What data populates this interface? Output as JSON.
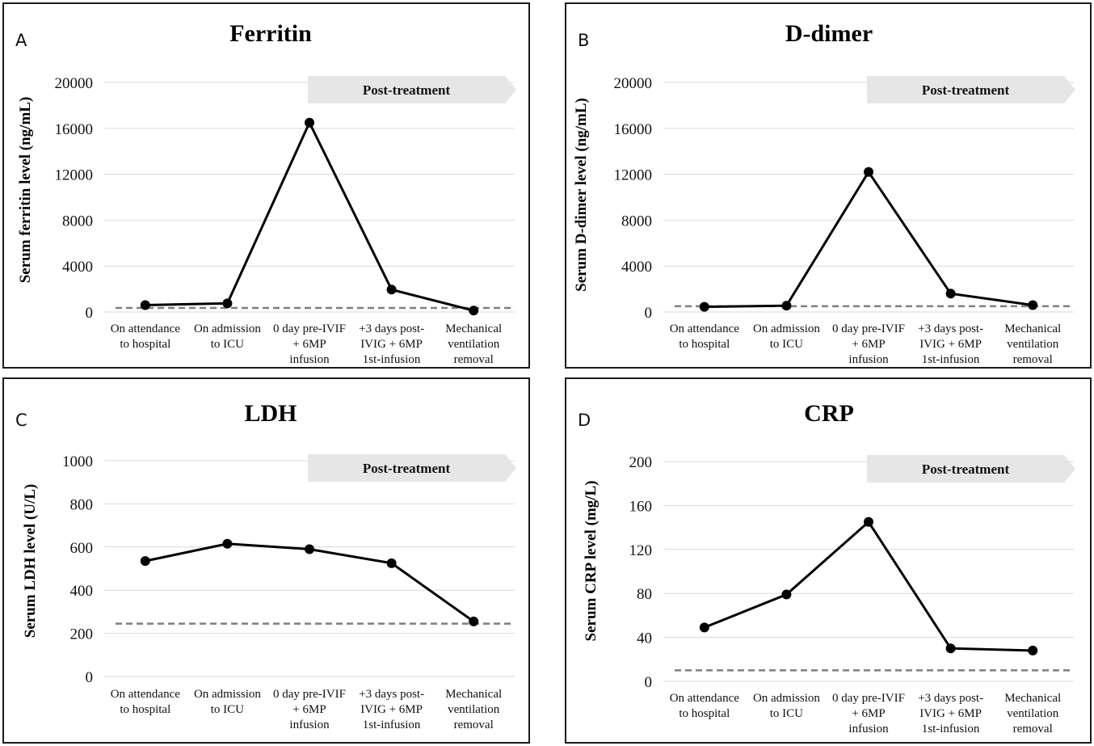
{
  "chart_data": [
    {
      "panel": "A",
      "type": "line",
      "title": "Ferritin",
      "ylabel": "Serum ferritin level (ng/mL)",
      "ylim": [
        0,
        20000
      ],
      "yticks": [
        0,
        4000,
        8000,
        12000,
        16000,
        20000
      ],
      "categories": [
        [
          "On attendance",
          "to hospital"
        ],
        [
          "On admission",
          "to ICU"
        ],
        [
          "0 day pre-IVIF",
          "+ 6MP",
          "infusion"
        ],
        [
          "+3 days post-",
          "IVIG + 6MP",
          "1st-infusion"
        ],
        [
          "Mechanical",
          "ventilation",
          "removal"
        ]
      ],
      "values": [
        600,
        750,
        16500,
        1950,
        120
      ],
      "reference_line": 350,
      "annotation": "Post-treatment",
      "annotation_from_index": 2
    },
    {
      "panel": "B",
      "type": "line",
      "title": "D-dimer",
      "ylabel": "Serum D-dimer level (ng/mL)",
      "ylim": [
        0,
        20000
      ],
      "yticks": [
        0,
        4000,
        8000,
        12000,
        16000,
        20000
      ],
      "categories": [
        [
          "On attendance",
          "to hospital"
        ],
        [
          "On admission",
          "to ICU"
        ],
        [
          "0 day pre-IVIF",
          "+ 6MP",
          "infusion"
        ],
        [
          "+3 days post-",
          "IVIG + 6MP",
          "1st-infusion"
        ],
        [
          "Mechanical",
          "ventilation",
          "removal"
        ]
      ],
      "values": [
        450,
        550,
        12200,
        1600,
        600
      ],
      "reference_line": 500,
      "annotation": "Post-treatment",
      "annotation_from_index": 2
    },
    {
      "panel": "C",
      "type": "line",
      "title": "LDH",
      "ylabel": "Serum LDH level (U/L)",
      "ylim": [
        0,
        1000
      ],
      "yticks": [
        0,
        200,
        400,
        600,
        800,
        1000
      ],
      "categories": [
        [
          "On attendance",
          "to hospital"
        ],
        [
          "On admission",
          "to ICU"
        ],
        [
          "0 day pre-IVIF",
          "+ 6MP",
          "infusion"
        ],
        [
          "+3 days post-",
          "IVIG + 6MP",
          "1st-infusion"
        ],
        [
          "Mechanical",
          "ventilation",
          "removal"
        ]
      ],
      "values": [
        535,
        615,
        590,
        525,
        255
      ],
      "reference_line": 245,
      "annotation": "Post-treatment",
      "annotation_from_index": 2
    },
    {
      "panel": "D",
      "type": "line",
      "title": "CRP",
      "ylabel": "Serum CRP level (mg/L)",
      "ylim": [
        0,
        200
      ],
      "yticks": [
        0,
        40,
        80,
        120,
        160,
        200
      ],
      "categories": [
        [
          "On attendance",
          "to hospital"
        ],
        [
          "On admission",
          "to ICU"
        ],
        [
          "0 day pre-IVIF",
          "+ 6MP",
          "infusion"
        ],
        [
          "+3 days post-",
          "IVIG + 6MP",
          "1st-infusion"
        ],
        [
          "Mechanical",
          "ventilation",
          "removal"
        ]
      ],
      "values": [
        49,
        79,
        145,
        30,
        28
      ],
      "reference_line": 10,
      "annotation": "Post-treatment",
      "annotation_from_index": 2
    }
  ]
}
